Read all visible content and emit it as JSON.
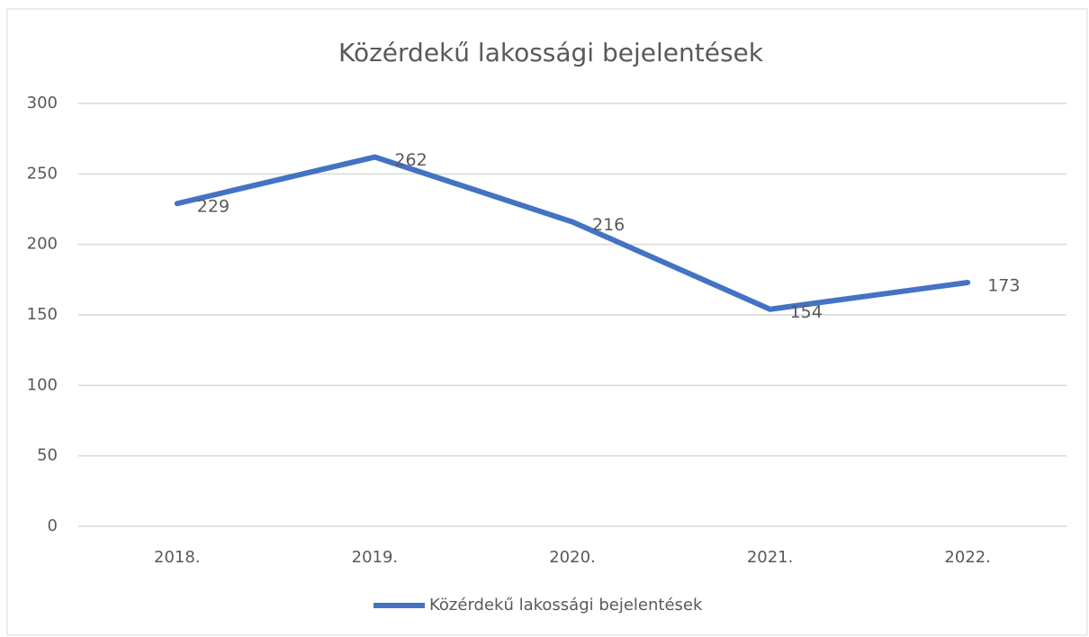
{
  "chart_data": {
    "type": "line",
    "title": "Közérdekű lakossági bejelentések",
    "categories": [
      "2018.",
      "2019.",
      "2020.",
      "2021.",
      "2022."
    ],
    "series": [
      {
        "name": "Közérdekű lakossági bejelentések",
        "color": "#4472c4",
        "values": [
          229,
          262,
          216,
          154,
          173
        ]
      }
    ],
    "ylim": [
      0,
      300
    ],
    "yticks": [
      0,
      50,
      100,
      150,
      200,
      250,
      300
    ],
    "grid": true,
    "legend": "bottom"
  }
}
